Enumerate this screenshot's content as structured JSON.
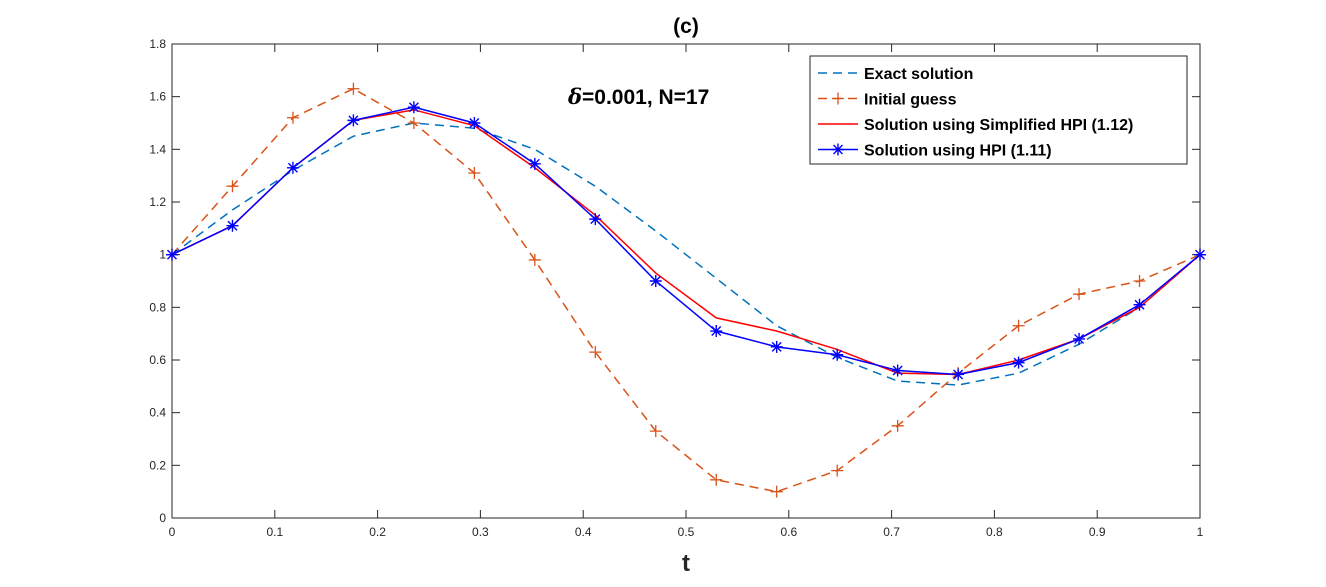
{
  "chart_data": {
    "type": "line",
    "title": "(c)",
    "annotation": "δ=0.001, N=17",
    "annotation_delta": "δ",
    "annotation_rest": "=0.001, N=17",
    "xlabel": "t",
    "ylabel": "",
    "xlim": [
      0,
      1
    ],
    "ylim": [
      0,
      1.8
    ],
    "xticks": [
      "0",
      "0.1",
      "0.2",
      "0.3",
      "0.4",
      "0.5",
      "0.6",
      "0.7",
      "0.8",
      "0.9",
      "1"
    ],
    "yticks": [
      "0",
      "0.2",
      "0.4",
      "0.6",
      "0.8",
      "1",
      "1.2",
      "1.4",
      "1.6",
      "1.8"
    ],
    "grid": false,
    "legend_position": "top-right",
    "x_note": "t = k/17, k = 0..17",
    "series": [
      {
        "name": "Exact solution",
        "color": "#0072BD",
        "style": "dashed",
        "marker": "none",
        "values": [
          1.0,
          1.17,
          1.32,
          1.45,
          1.5,
          1.48,
          1.4,
          1.26,
          1.09,
          0.91,
          0.73,
          0.61,
          0.52,
          0.505,
          0.55,
          0.66,
          0.8,
          1.0
        ]
      },
      {
        "name": "Initial guess",
        "color": "#D95319",
        "style": "dashed",
        "marker": "plus",
        "values": [
          1.0,
          1.26,
          1.52,
          1.63,
          1.5,
          1.31,
          0.98,
          0.63,
          0.33,
          0.145,
          0.1,
          0.18,
          0.35,
          0.55,
          0.73,
          0.85,
          0.9,
          1.0
        ]
      },
      {
        "name": "Solution using Simplified HPI (1.12)",
        "color": "#FF0000",
        "style": "solid",
        "marker": "none",
        "values": [
          1.0,
          1.11,
          1.33,
          1.51,
          1.55,
          1.49,
          1.33,
          1.15,
          0.93,
          0.76,
          0.71,
          0.64,
          0.55,
          0.545,
          0.6,
          0.68,
          0.8,
          1.0
        ]
      },
      {
        "name": "Solution using HPI (1.11)",
        "color": "#0000FF",
        "style": "solid",
        "marker": "star",
        "values": [
          1.0,
          1.11,
          1.33,
          1.51,
          1.56,
          1.5,
          1.345,
          1.135,
          0.9,
          0.71,
          0.65,
          0.62,
          0.56,
          0.545,
          0.59,
          0.68,
          0.81,
          1.0
        ]
      }
    ]
  }
}
